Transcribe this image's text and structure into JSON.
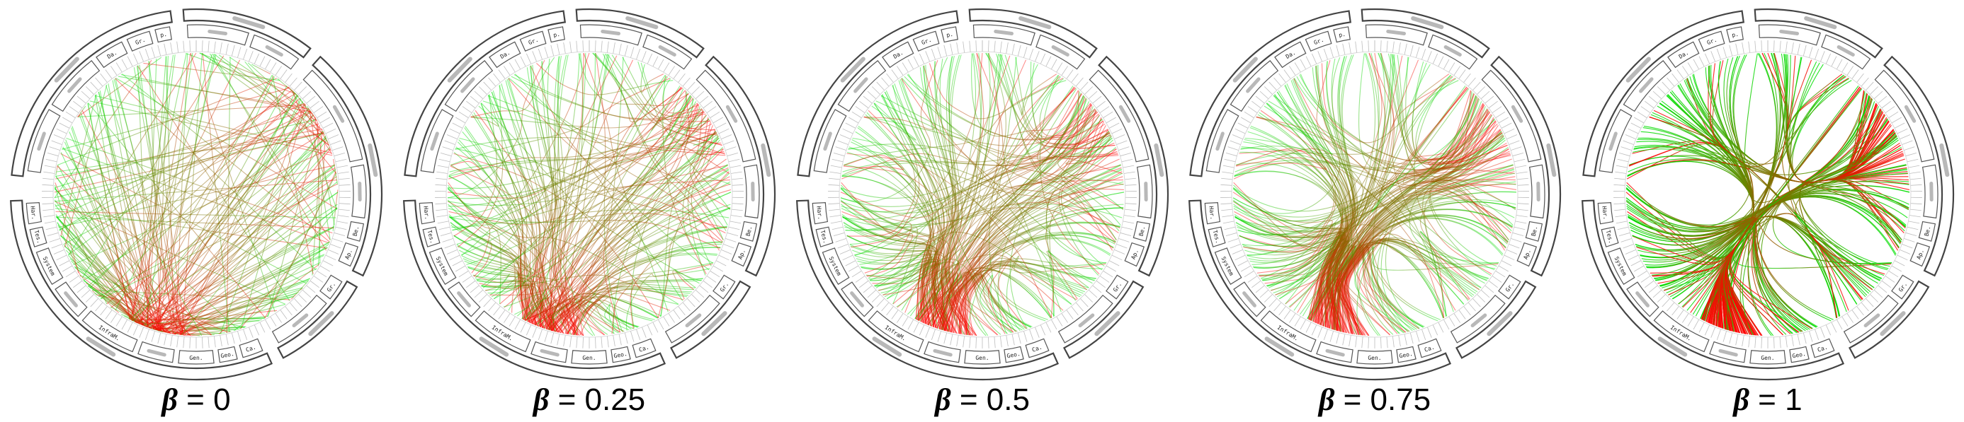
{
  "panels": [
    {
      "beta_symbol": "β",
      "beta_text": " = 0",
      "beta_value": 0
    },
    {
      "beta_symbol": "β",
      "beta_text": " = 0.25",
      "beta_value": 0.25
    },
    {
      "beta_symbol": "β",
      "beta_text": " = 0.5",
      "beta_value": 0.5
    },
    {
      "beta_symbol": "β",
      "beta_text": " = 0.75",
      "beta_value": 0.75
    },
    {
      "beta_symbol": "β",
      "beta_text": " = 1",
      "beta_value": 1
    }
  ],
  "node_labels": {
    "infra_sub": [
      "Har.",
      "Tes.",
      "System",
      "InfraM.",
      "Gen.",
      "Geo.",
      "Ca."
    ],
    "left_sub": [
      "Gr.",
      "Da.",
      "Ja.",
      "p.",
      "S."
    ],
    "right_sub": [
      "Be.",
      "Ap.",
      "Gr."
    ]
  },
  "colors": {
    "edge_start": "#00e000",
    "edge_end": "#ff0000",
    "ring_stroke": "#444444",
    "box_stroke": "#555555",
    "blurred_label": "#b8b8b8"
  }
}
